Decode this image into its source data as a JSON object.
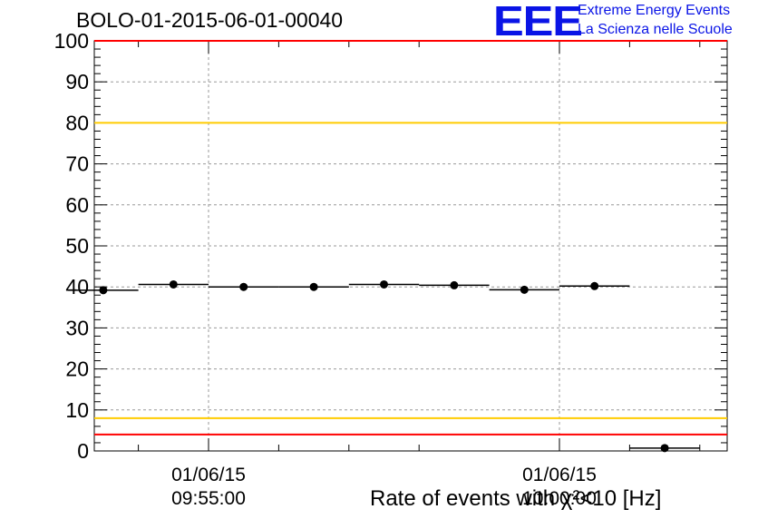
{
  "header": {
    "run_title": "BOLO-01-2015-06-01-00040",
    "logo_text": "EEE",
    "logo_line1": "Extreme Energy Events",
    "logo_line2": "La Scienza nelle Scuole"
  },
  "colors": {
    "logo_blue": "#0a14e6",
    "limit_red": "#ff0000",
    "limit_yellow": "#ffcc00",
    "grid": "#999999",
    "marker": "#000000"
  },
  "chart_data": {
    "type": "scatter",
    "title": "BOLO-01-2015-06-01-00040",
    "xlabel": "Rate of events with χ²<10 [Hz]",
    "ylabel": "",
    "ylim": [
      0,
      100
    ],
    "yticks": [
      "0",
      "10",
      "20",
      "30",
      "40",
      "50",
      "60",
      "70",
      "80",
      "90",
      "100"
    ],
    "xtick_labels": [
      {
        "date": "01/06/15",
        "time": "09:55:00"
      },
      {
        "date": "01/06/15",
        "time": "10:00:00"
      }
    ],
    "grid": true,
    "bin_width_minutes": 1,
    "series": [
      {
        "x": [
          "09:53:30",
          "09:54:30",
          "09:55:30",
          "09:56:30",
          "09:57:30",
          "09:58:30",
          "09:59:30",
          "10:00:30",
          "10:01:30"
        ],
        "values": [
          39.2,
          40.6,
          40.0,
          40.0,
          40.6,
          40.4,
          39.3,
          40.2,
          0.7
        ]
      }
    ],
    "reference_lines": [
      {
        "y": 100,
        "color": "red"
      },
      {
        "y": 80,
        "color": "yellow"
      },
      {
        "y": 8,
        "color": "yellow"
      },
      {
        "y": 4,
        "color": "red"
      }
    ]
  }
}
